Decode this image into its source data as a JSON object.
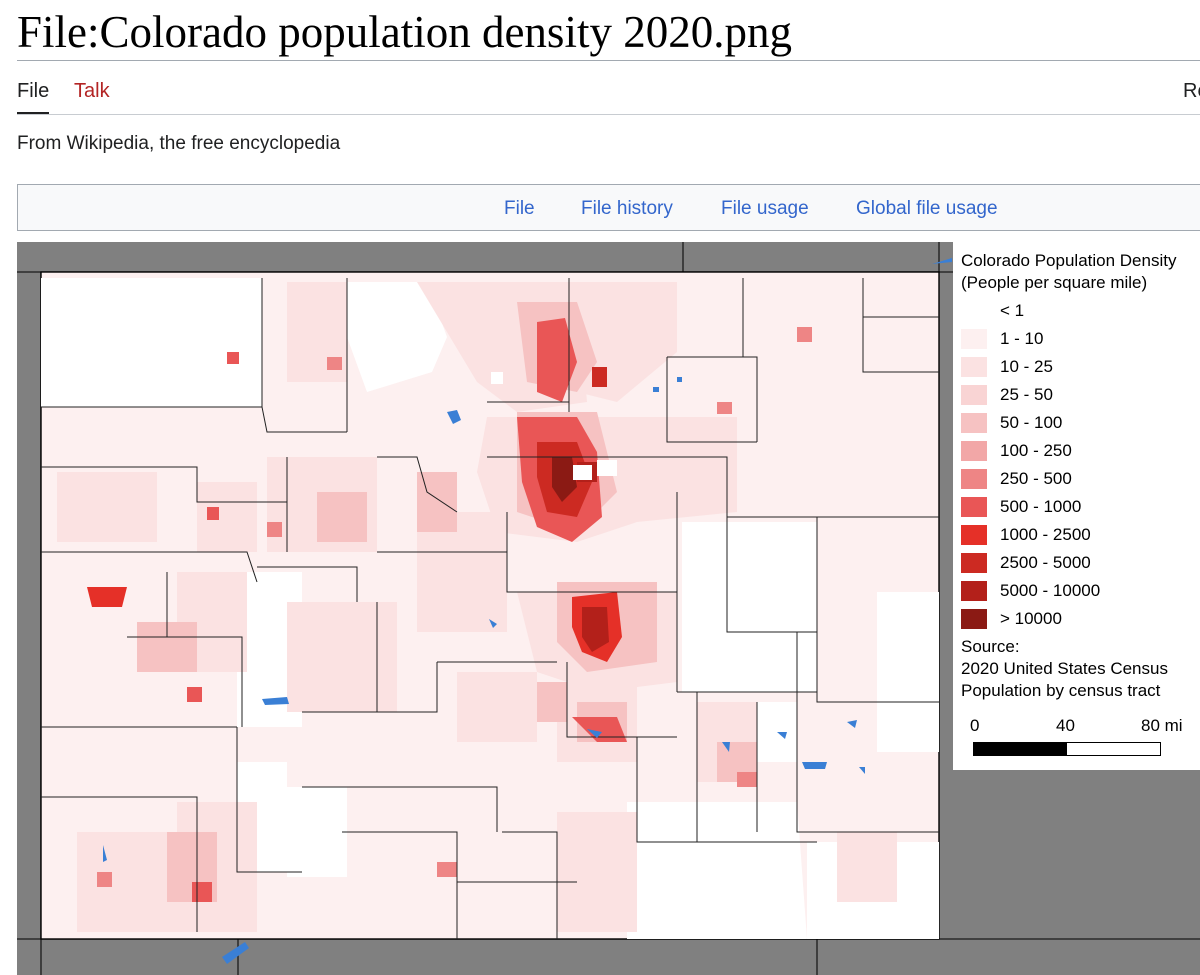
{
  "page": {
    "title": "File:Colorado population density 2020.png",
    "tagline": "From Wikipedia, the free encyclopedia"
  },
  "tabs": {
    "file": "File",
    "talk": "Talk",
    "read_partial": "Re"
  },
  "file_nav": {
    "links": [
      "File",
      "File history",
      "File usage",
      "Global file usage"
    ]
  },
  "legend": {
    "title_line1": "Colorado Population Density",
    "title_line2": "(People per square mile)",
    "classes": [
      {
        "label": "< 1",
        "color": "#ffffff"
      },
      {
        "label": "1 - 10",
        "color": "#fdf0f0"
      },
      {
        "label": "10 - 25",
        "color": "#fbe2e2"
      },
      {
        "label": "25 - 50",
        "color": "#f9d4d4"
      },
      {
        "label": "50 - 100",
        "color": "#f6c2c2"
      },
      {
        "label": "100 - 250",
        "color": "#f2a7a7"
      },
      {
        "label": "250 - 500",
        "color": "#ee8585"
      },
      {
        "label": "500 - 1000",
        "color": "#e95656"
      },
      {
        "label": "1000 - 2500",
        "color": "#e53028"
      },
      {
        "label": "2500 - 5000",
        "color": "#cc2a22"
      },
      {
        "label": "5000 - 10000",
        "color": "#b3201a"
      },
      {
        "label": "> 10000",
        "color": "#8b1a14"
      }
    ],
    "source_line1": "Source:",
    "source_line2": "2020 United States Census",
    "source_line3": "Population by census tract",
    "scale": {
      "ticks": [
        "0",
        "40",
        "80 mi"
      ]
    }
  },
  "colors": {
    "link": "#3366cc",
    "talk_link": "#b32424",
    "water": "#3a7fd5",
    "surroundings": "#808080"
  }
}
